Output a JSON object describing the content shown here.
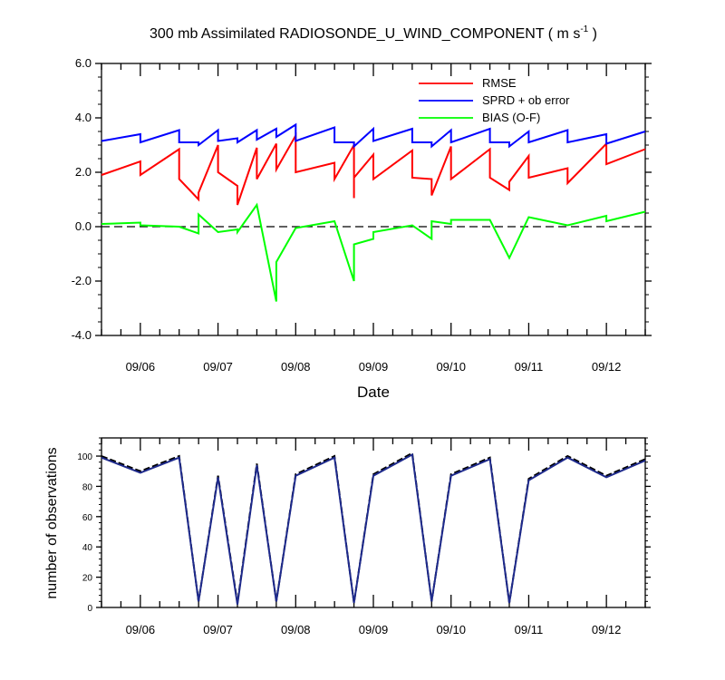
{
  "chart_data": [
    {
      "type": "line",
      "title_main": "300 mb Assimilated RADIOSONDE_U_WIND_COMPONENT ( m s",
      "title_sup": "-1",
      "title_end": " )",
      "xlabel": "Date",
      "ylabel": "",
      "ylim": [
        -4,
        6
      ],
      "yticks": [
        "-4.0",
        "-2.0",
        "0.0",
        "2.0",
        "4.0",
        "6.0"
      ],
      "xlim": [
        0,
        7
      ],
      "xticks": [
        {
          "x": 0.5,
          "label": "09/06"
        },
        {
          "x": 1.5,
          "label": "09/07"
        },
        {
          "x": 2.5,
          "label": "09/08"
        },
        {
          "x": 3.5,
          "label": "09/09"
        },
        {
          "x": 4.5,
          "label": "09/10"
        },
        {
          "x": 5.5,
          "label": "09/11"
        },
        {
          "x": 6.5,
          "label": "09/12"
        }
      ],
      "zero_line": true,
      "legend": [
        "RMSE",
        "SPRD + ob error",
        "BIAS (O-F)"
      ],
      "series": [
        {
          "name": "RMSE",
          "color": "#ff0000",
          "points": [
            [
              0,
              1.9
            ],
            [
              0.5,
              2.4
            ],
            [
              0.5,
              1.9
            ],
            [
              1.0,
              2.85
            ],
            [
              1.0,
              1.75
            ],
            [
              1.25,
              1.0
            ],
            [
              1.25,
              1.25
            ],
            [
              1.5,
              3.0
            ],
            [
              1.5,
              2.0
            ],
            [
              1.75,
              1.5
            ],
            [
              1.75,
              0.8
            ],
            [
              2.0,
              2.9
            ],
            [
              2.0,
              1.75
            ],
            [
              2.25,
              3.05
            ],
            [
              2.25,
              2.1
            ],
            [
              2.5,
              3.35
            ],
            [
              2.5,
              2.0
            ],
            [
              3.0,
              2.35
            ],
            [
              3.0,
              1.75
            ],
            [
              3.25,
              3.0
            ],
            [
              3.25,
              1.05
            ],
            [
              3.25,
              1.8
            ],
            [
              3.5,
              2.65
            ],
            [
              3.5,
              1.75
            ],
            [
              4.0,
              2.8
            ],
            [
              4.0,
              1.8
            ],
            [
              4.25,
              1.75
            ],
            [
              4.25,
              1.15
            ],
            [
              4.5,
              2.95
            ],
            [
              4.5,
              1.75
            ],
            [
              5.0,
              2.85
            ],
            [
              5.0,
              1.8
            ],
            [
              5.25,
              1.35
            ],
            [
              5.25,
              1.65
            ],
            [
              5.5,
              2.6
            ],
            [
              5.5,
              1.8
            ],
            [
              6.0,
              2.15
            ],
            [
              6.0,
              1.6
            ],
            [
              6.5,
              3.05
            ],
            [
              6.5,
              2.3
            ],
            [
              7.0,
              2.85
            ]
          ]
        },
        {
          "name": "SPRD + ob error",
          "color": "#0000ff",
          "points": [
            [
              0,
              3.15
            ],
            [
              0.5,
              3.4
            ],
            [
              0.5,
              3.1
            ],
            [
              1.0,
              3.55
            ],
            [
              1.0,
              3.1
            ],
            [
              1.25,
              3.1
            ],
            [
              1.25,
              3.0
            ],
            [
              1.5,
              3.55
            ],
            [
              1.5,
              3.15
            ],
            [
              1.75,
              3.25
            ],
            [
              1.75,
              3.1
            ],
            [
              2.0,
              3.55
            ],
            [
              2.0,
              3.2
            ],
            [
              2.25,
              3.6
            ],
            [
              2.25,
              3.3
            ],
            [
              2.5,
              3.75
            ],
            [
              2.5,
              3.15
            ],
            [
              3.0,
              3.65
            ],
            [
              3.0,
              3.1
            ],
            [
              3.25,
              3.1
            ],
            [
              3.25,
              2.95
            ],
            [
              3.5,
              3.6
            ],
            [
              3.5,
              3.15
            ],
            [
              4.0,
              3.6
            ],
            [
              4.0,
              3.1
            ],
            [
              4.25,
              3.1
            ],
            [
              4.25,
              2.95
            ],
            [
              4.5,
              3.55
            ],
            [
              4.5,
              3.1
            ],
            [
              5.0,
              3.6
            ],
            [
              5.0,
              3.1
            ],
            [
              5.25,
              3.1
            ],
            [
              5.25,
              2.95
            ],
            [
              5.5,
              3.5
            ],
            [
              5.5,
              3.1
            ],
            [
              6.0,
              3.55
            ],
            [
              6.0,
              3.1
            ],
            [
              6.5,
              3.4
            ],
            [
              6.5,
              3.05
            ],
            [
              7.0,
              3.5
            ]
          ]
        },
        {
          "name": "BIAS (O-F)",
          "color": "#00ff00",
          "points": [
            [
              0,
              0.1
            ],
            [
              0.5,
              0.15
            ],
            [
              0.5,
              0.05
            ],
            [
              1.0,
              0.0
            ],
            [
              1.25,
              -0.25
            ],
            [
              1.25,
              0.45
            ],
            [
              1.5,
              -0.2
            ],
            [
              1.75,
              -0.1
            ],
            [
              1.75,
              -0.2
            ],
            [
              2.0,
              0.8
            ],
            [
              2.25,
              -2.75
            ],
            [
              2.25,
              -1.3
            ],
            [
              2.5,
              -0.05
            ],
            [
              3.0,
              0.2
            ],
            [
              3.25,
              -2.0
            ],
            [
              3.25,
              -0.65
            ],
            [
              3.5,
              -0.45
            ],
            [
              3.5,
              -0.2
            ],
            [
              4.0,
              0.05
            ],
            [
              4.25,
              -0.45
            ],
            [
              4.25,
              0.2
            ],
            [
              4.5,
              0.1
            ],
            [
              4.5,
              0.25
            ],
            [
              5.0,
              0.25
            ],
            [
              5.25,
              -1.15
            ],
            [
              5.5,
              0.35
            ],
            [
              6.0,
              0.05
            ],
            [
              6.5,
              0.4
            ],
            [
              6.5,
              0.2
            ],
            [
              7.0,
              0.55
            ]
          ]
        }
      ]
    },
    {
      "type": "line",
      "title": "",
      "xlabel": "",
      "ylabel": "number of observations",
      "ylim": [
        0,
        112
      ],
      "yticks": [
        "0",
        "20",
        "40",
        "60",
        "80",
        "100"
      ],
      "xlim": [
        0,
        7
      ],
      "xticks": [
        {
          "x": 0.5,
          "label": "09/06"
        },
        {
          "x": 1.5,
          "label": "09/07"
        },
        {
          "x": 2.5,
          "label": "09/08"
        },
        {
          "x": 3.5,
          "label": "09/09"
        },
        {
          "x": 4.5,
          "label": "09/10"
        },
        {
          "x": 5.5,
          "label": "09/11"
        },
        {
          "x": 6.5,
          "label": "09/12"
        }
      ],
      "series": [
        {
          "name": "observations (dashed)",
          "color": "#000000",
          "dashed": true,
          "points": [
            [
              0,
              100
            ],
            [
              0.5,
              90
            ],
            [
              1.0,
              100
            ],
            [
              1.25,
              4
            ],
            [
              1.5,
              87
            ],
            [
              1.75,
              3
            ],
            [
              2.0,
              95
            ],
            [
              2.25,
              4
            ],
            [
              2.5,
              88
            ],
            [
              3.0,
              100
            ],
            [
              3.25,
              3
            ],
            [
              3.5,
              88
            ],
            [
              4.0,
              102
            ],
            [
              4.25,
              4
            ],
            [
              4.5,
              88
            ],
            [
              5.0,
              99
            ],
            [
              5.25,
              3
            ],
            [
              5.5,
              85
            ],
            [
              6.0,
              100
            ],
            [
              6.5,
              87
            ],
            [
              7.0,
              98
            ]
          ]
        },
        {
          "name": "observations",
          "color": "#1e2a8c",
          "dashed": false,
          "points": [
            [
              0,
              99
            ],
            [
              0.5,
              89
            ],
            [
              1.0,
              99
            ],
            [
              1.25,
              4
            ],
            [
              1.5,
              86
            ],
            [
              1.75,
              2
            ],
            [
              2.0,
              94
            ],
            [
              2.25,
              4
            ],
            [
              2.5,
              87
            ],
            [
              3.0,
              99
            ],
            [
              3.25,
              3
            ],
            [
              3.5,
              87
            ],
            [
              4.0,
              101
            ],
            [
              4.25,
              4
            ],
            [
              4.5,
              87
            ],
            [
              5.0,
              98
            ],
            [
              5.25,
              3
            ],
            [
              5.5,
              84
            ],
            [
              6.0,
              99
            ],
            [
              6.5,
              86
            ],
            [
              7.0,
              97
            ]
          ]
        }
      ]
    }
  ]
}
